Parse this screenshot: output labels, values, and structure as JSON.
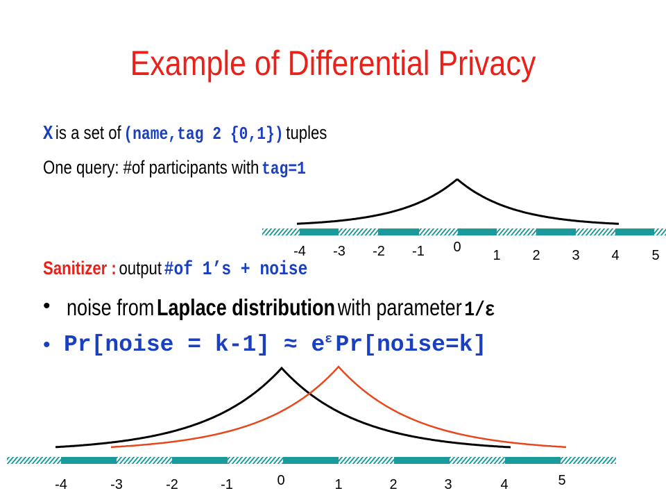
{
  "title": "Example of Differential Privacy",
  "line1": {
    "var": "X",
    "text1": "is a set of",
    "tuple": "(name,tag 2 {0,1})",
    "text2": "tuples"
  },
  "line2": {
    "text": "One query: #of participants with",
    "code": "tag=1"
  },
  "line3": {
    "label": "Sanitizer :",
    "text": "output",
    "code": "#of 1’s + noise"
  },
  "bullets": [
    {
      "text1": "noise from",
      "bold": "Laplace distribution",
      "text2": "with parameter",
      "param": "1/ε"
    },
    {
      "lhs": "Pr[noise = k-1] ≈ e",
      "sup": "ε",
      "rhs": "Pr[noise=k]"
    }
  ],
  "colors": {
    "title": "#e8221b",
    "code": "#1a3fbf",
    "axis": "#1a9a9a",
    "curve_shifted": "#e8461b"
  },
  "top_axis_labels": [
    "-4",
    "-3",
    "-2",
    "-1",
    "0",
    "1",
    "2",
    "3",
    "4",
    "5"
  ],
  "bottom_axis_labels": [
    "-4",
    "-3",
    "-2",
    "-1",
    "0",
    "1",
    "2",
    "3",
    "4",
    "5"
  ],
  "curves": {
    "top_peak_at": 0,
    "bottom_black_peak_at": 0,
    "bottom_red_peak_at": 1
  }
}
